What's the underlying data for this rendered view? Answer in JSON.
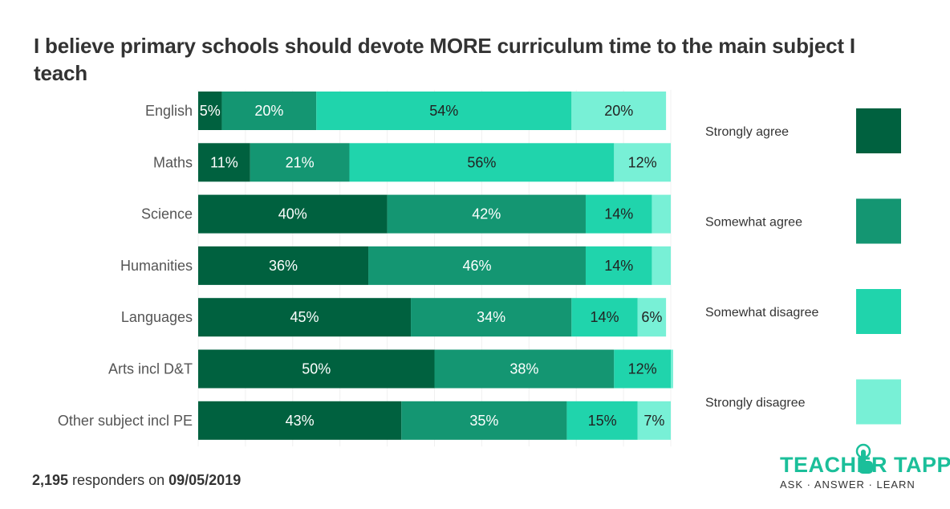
{
  "chart_data": {
    "type": "bar",
    "orientation": "horizontal",
    "stacked": true,
    "title": "I believe primary schools should devote MORE curriculum time to the main subject I teach",
    "categories": [
      "English",
      "Maths",
      "Science",
      "Humanities",
      "Languages",
      "Arts incl D&T",
      "Other subject incl PE"
    ],
    "series": [
      {
        "name": "Strongly agree",
        "color": "#00613f",
        "label_color": "#ffffff",
        "values": [
          5,
          11,
          40,
          36,
          45,
          50,
          43
        ]
      },
      {
        "name": "Somewhat agree",
        "color": "#149672",
        "label_color": "#ffffff",
        "values": [
          20,
          21,
          42,
          46,
          34,
          38,
          35
        ]
      },
      {
        "name": "Somewhat disagree",
        "color": "#20d4ac",
        "label_color": "#222222",
        "values": [
          54,
          56,
          14,
          14,
          14,
          12,
          15
        ]
      },
      {
        "name": "Strongly disagree",
        "color": "#78f0d6",
        "label_color": "#222222",
        "values": [
          20,
          12,
          4,
          4,
          6,
          0.5,
          7
        ]
      }
    ],
    "value_labels_shown": [
      [
        true,
        true,
        true,
        true
      ],
      [
        true,
        true,
        true,
        true
      ],
      [
        true,
        true,
        true,
        false
      ],
      [
        true,
        true,
        true,
        false
      ],
      [
        true,
        true,
        true,
        true
      ],
      [
        true,
        true,
        true,
        false
      ],
      [
        true,
        true,
        true,
        true
      ]
    ],
    "value_suffix": "%",
    "xlim": [
      0,
      100
    ],
    "xlabel": "",
    "ylabel": "",
    "grid": true,
    "legend_position": "right"
  },
  "footer": {
    "count": "2,195",
    "middle": " responders on ",
    "date": "09/05/2019"
  },
  "logo": {
    "word": "TEACHER TAPP",
    "tagline": "ASK · ANSWER · LEARN"
  }
}
